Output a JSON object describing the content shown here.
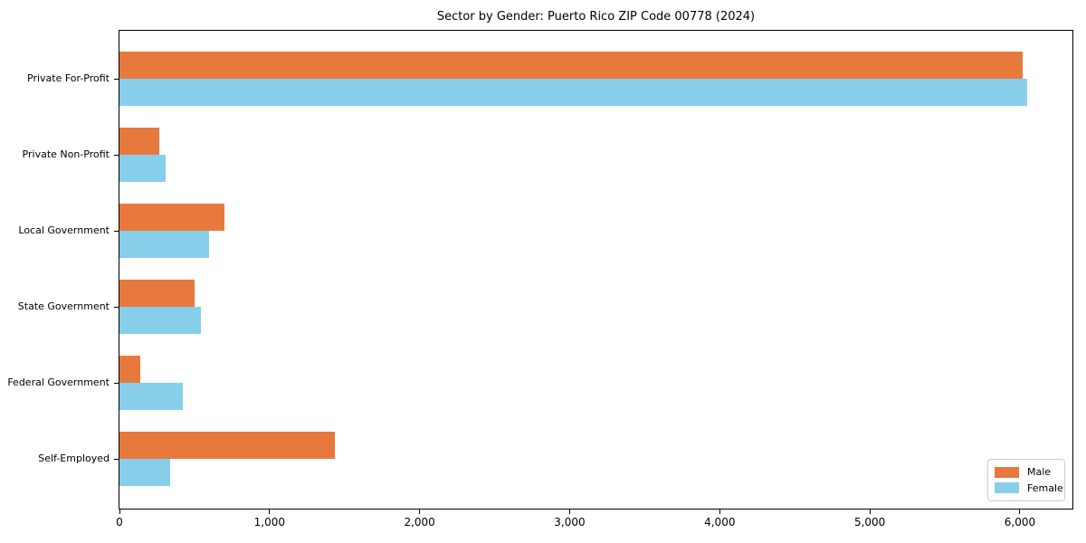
{
  "chart_data": {
    "type": "bar",
    "orientation": "horizontal",
    "title": "Sector by Gender: Puerto Rico ZIP Code 00778 (2024)",
    "xlabel": "",
    "ylabel": "",
    "categories": [
      "Private For-Profit",
      "Private Non-Profit",
      "Local Government",
      "State Government",
      "Federal Government",
      "Self-Employed"
    ],
    "series": [
      {
        "name": "Male",
        "color": "#E8793C",
        "values": [
          6020,
          265,
          700,
          500,
          140,
          1435
        ]
      },
      {
        "name": "Female",
        "color": "#87CEEB",
        "values": [
          6050,
          310,
          595,
          545,
          425,
          340
        ]
      }
    ],
    "xlim": [
      0,
      6350
    ],
    "x_ticks": [
      0,
      1000,
      2000,
      3000,
      4000,
      5000,
      6000
    ],
    "x_tick_labels": [
      "0",
      "1,000",
      "2,000",
      "3,000",
      "4,000",
      "5,000",
      "6,000"
    ],
    "grid": false,
    "legend": {
      "position": "lower right",
      "entries": [
        "Male",
        "Female"
      ]
    },
    "colors": {
      "spine": "#000000",
      "text": "#000000",
      "legend_border": "#cccccc",
      "background": "#ffffff"
    }
  }
}
